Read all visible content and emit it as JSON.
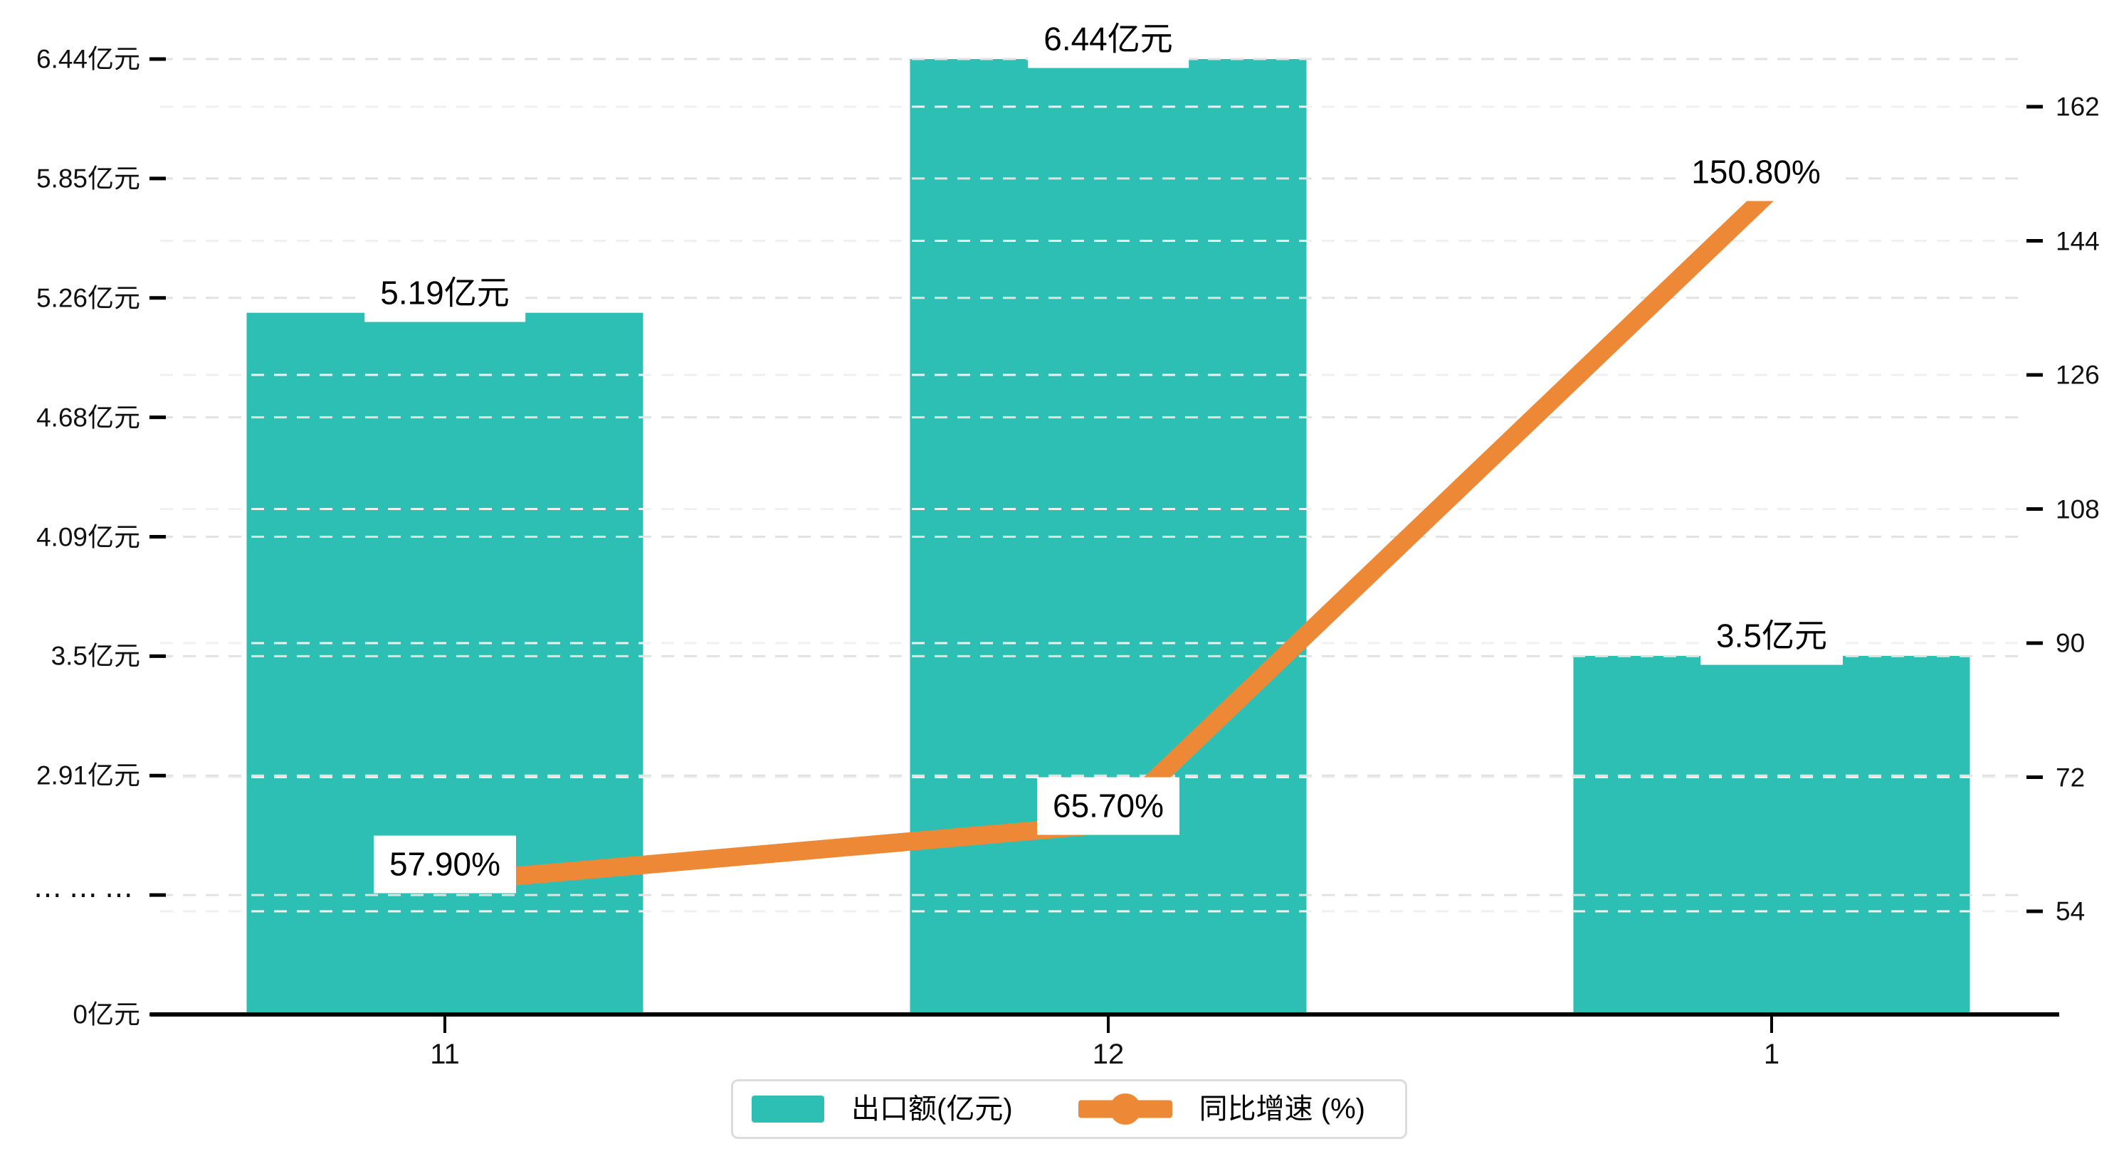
{
  "colors": {
    "bar": "#2dbfb3",
    "line": "#ed8936",
    "axis": "#000000",
    "grid_major": "#e2e2e2",
    "grid_minor": "#f0f0f0",
    "label_bg": "#ffffff",
    "legend_border": "#dcdcdc",
    "text": "#000000"
  },
  "chart_data": {
    "type": "bar+line",
    "categories": [
      "11",
      "12",
      "1"
    ],
    "series": [
      {
        "name": "出口额(亿元)",
        "type": "bar",
        "axis": "left",
        "values": [
          5.19,
          6.44,
          3.5
        ],
        "labels": [
          "5.19亿元",
          "6.44亿元",
          "3.5亿元"
        ]
      },
      {
        "name": "同比增速 (%)",
        "type": "line",
        "axis": "right",
        "values": [
          57.9,
          65.7,
          150.8
        ],
        "labels": [
          "57.90%",
          "65.70%",
          "150.80%"
        ]
      }
    ],
    "left_axis": {
      "unit": "亿元",
      "tick_labels": [
        "0亿元",
        "⋯⋯⋯",
        "2.91亿元",
        "3.5亿元",
        "4.09亿元",
        "4.68亿元",
        "5.26亿元",
        "5.85亿元",
        "6.44亿元"
      ],
      "tick_values": [
        0,
        null,
        2.91,
        3.5,
        4.09,
        4.68,
        5.26,
        5.85,
        6.44
      ],
      "has_scale_break": true
    },
    "right_axis": {
      "tick_labels": [
        "54",
        "72",
        "90",
        "108",
        "126",
        "144",
        "162"
      ],
      "min": 54,
      "max": 162,
      "step": 18
    },
    "legend": [
      {
        "label": "出口额(亿元)",
        "type": "bar"
      },
      {
        "label": "同比增速 (%)",
        "type": "line"
      }
    ],
    "grid": true,
    "legend_position": "bottom"
  }
}
